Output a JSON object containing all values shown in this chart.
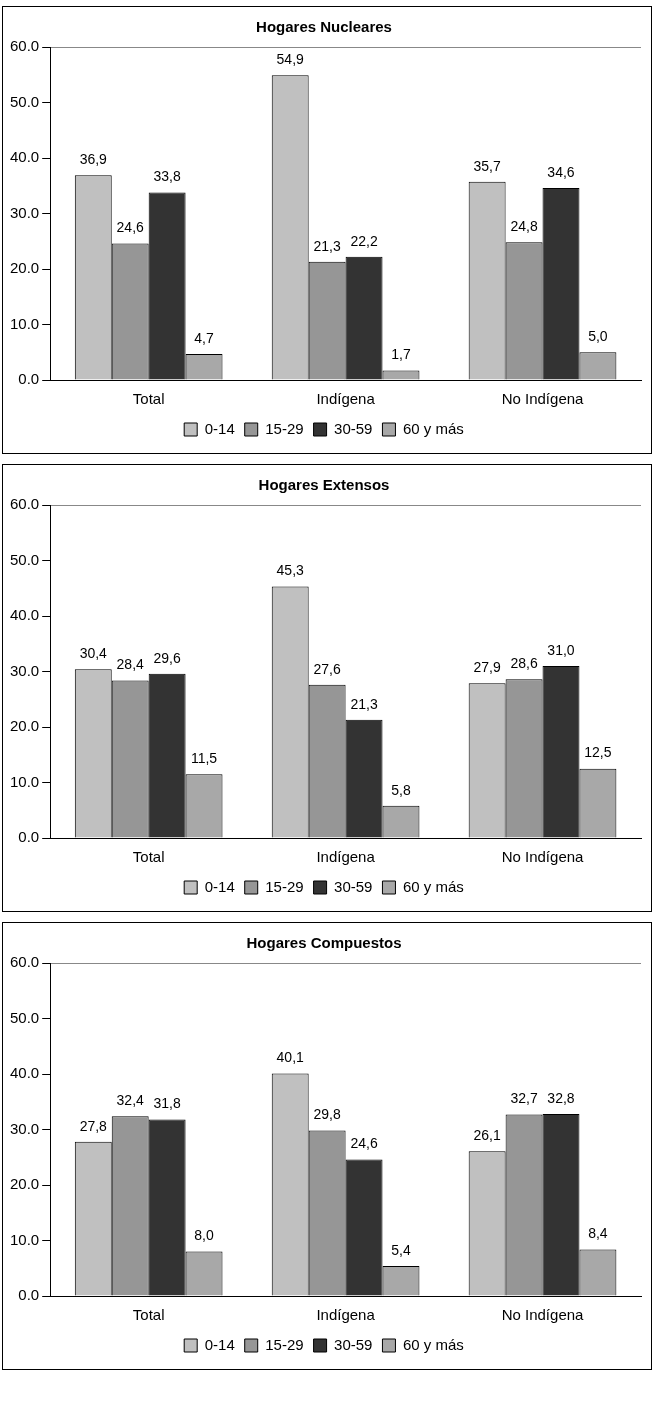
{
  "chart_data": [
    {
      "type": "bar",
      "title": "Hogares Nucleares",
      "categories": [
        "Total",
        "Indígena",
        "No Indígena"
      ],
      "series": [
        {
          "name": "0-14",
          "color": "#c0c0c0",
          "values": [
            36.9,
            54.9,
            35.7
          ],
          "value_labels": [
            "36,9",
            "54,9",
            "35,7"
          ]
        },
        {
          "name": "15-29",
          "color": "#969696",
          "values": [
            24.6,
            21.3,
            24.8
          ],
          "value_labels": [
            "24,6",
            "21,3",
            "24,8"
          ]
        },
        {
          "name": "30-59",
          "color": "#333333",
          "values": [
            33.8,
            22.2,
            34.6
          ],
          "value_labels": [
            "33,8",
            "22,2",
            "34,6"
          ]
        },
        {
          "name": "60 y más",
          "color": "#a8a8a8",
          "values": [
            4.7,
            1.7,
            5.0
          ],
          "value_labels": [
            "4,7",
            "1,7",
            "5,0"
          ]
        }
      ],
      "ylim": [
        0,
        60
      ],
      "yticks": [
        {
          "value": 0,
          "label": "0.0"
        },
        {
          "value": 10,
          "label": "10.0"
        },
        {
          "value": 20,
          "label": "20.0"
        },
        {
          "value": 30,
          "label": "30.0"
        },
        {
          "value": 40,
          "label": "40.0"
        },
        {
          "value": 50,
          "label": "50.0"
        },
        {
          "value": 60,
          "label": "60.0"
        }
      ],
      "legend": "bottom"
    },
    {
      "type": "bar",
      "title": "Hogares Extensos",
      "categories": [
        "Total",
        "Indígena",
        "No Indígena"
      ],
      "series": [
        {
          "name": "0-14",
          "color": "#c0c0c0",
          "values": [
            30.4,
            45.3,
            27.9
          ],
          "value_labels": [
            "30,4",
            "45,3",
            "27,9"
          ]
        },
        {
          "name": "15-29",
          "color": "#969696",
          "values": [
            28.4,
            27.6,
            28.6
          ],
          "value_labels": [
            "28,4",
            "27,6",
            "28,6"
          ]
        },
        {
          "name": "30-59",
          "color": "#333333",
          "values": [
            29.6,
            21.3,
            31.0
          ],
          "value_labels": [
            "29,6",
            "21,3",
            "31,0"
          ]
        },
        {
          "name": "60 y más",
          "color": "#a8a8a8",
          "values": [
            11.5,
            5.8,
            12.5
          ],
          "value_labels": [
            "11,5",
            "5,8",
            "12,5"
          ]
        }
      ],
      "ylim": [
        0,
        60
      ],
      "yticks": [
        {
          "value": 0,
          "label": "0.0"
        },
        {
          "value": 10,
          "label": "10.0"
        },
        {
          "value": 20,
          "label": "20.0"
        },
        {
          "value": 30,
          "label": "30.0"
        },
        {
          "value": 40,
          "label": "40.0"
        },
        {
          "value": 50,
          "label": "50.0"
        },
        {
          "value": 60,
          "label": "60.0"
        }
      ],
      "legend": "bottom"
    },
    {
      "type": "bar",
      "title": "Hogares Compuestos",
      "categories": [
        "Total",
        "Indígena",
        "No Indígena"
      ],
      "series": [
        {
          "name": "0-14",
          "color": "#c0c0c0",
          "values": [
            27.8,
            40.1,
            26.1
          ],
          "value_labels": [
            "27,8",
            "40,1",
            "26,1"
          ]
        },
        {
          "name": "15-29",
          "color": "#969696",
          "values": [
            32.4,
            29.8,
            32.7
          ],
          "value_labels": [
            "32,4",
            "29,8",
            "32,7"
          ]
        },
        {
          "name": "30-59",
          "color": "#333333",
          "values": [
            31.8,
            24.6,
            32.8
          ],
          "value_labels": [
            "31,8",
            "24,6",
            "32,8"
          ]
        },
        {
          "name": "60 y más",
          "color": "#a8a8a8",
          "values": [
            8.0,
            5.4,
            8.4
          ],
          "value_labels": [
            "8,0",
            "5,4",
            "8,4"
          ]
        }
      ],
      "ylim": [
        0,
        60
      ],
      "yticks": [
        {
          "value": 0,
          "label": "0.0"
        },
        {
          "value": 10,
          "label": "10.0"
        },
        {
          "value": 20,
          "label": "20.0"
        },
        {
          "value": 30,
          "label": "30.0"
        },
        {
          "value": 40,
          "label": "40.0"
        },
        {
          "value": 50,
          "label": "50.0"
        },
        {
          "value": 60,
          "label": "60.0"
        }
      ],
      "legend": "bottom"
    }
  ]
}
